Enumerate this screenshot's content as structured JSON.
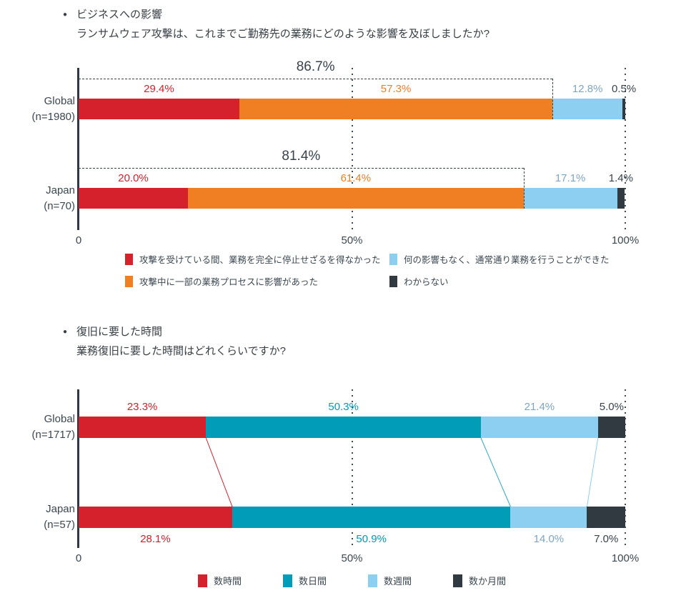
{
  "charts": [
    {
      "title": "ビジネスへの影響",
      "question": "ランサムウェア攻撃は、これまでご勤務先の業務にどのような影響を及ぼしましたか?",
      "chart_data": {
        "type": "bar",
        "stacked": true,
        "orientation": "horizontal",
        "xlim": [
          0,
          100
        ],
        "x_ticks": [
          "0",
          "50%",
          "100%"
        ],
        "grid": "vertical dotted lines at 50% and 100%",
        "legend_position": "bottom",
        "series_colors": [
          "#d4212b",
          "#ef7f22",
          "#8ccff0",
          "#323a41"
        ],
        "label_colors": [
          "#d4212b",
          "#ef7f22",
          "#7fa6c0",
          "#39434c"
        ],
        "legend": [
          {
            "label": "攻撃を受けている間、業務を完全に停止せざるを得なかった",
            "color": "#d4212b"
          },
          {
            "label": "攻撃中に一部の業務プロセスに影響があった",
            "color": "#ef7f22"
          },
          {
            "label": "何の影響もなく、通常通り業務を行うことができた",
            "color": "#8ccff0"
          },
          {
            "label": "わからない",
            "color": "#323a41"
          }
        ],
        "rows": [
          {
            "label": "Global",
            "n": "(n=1980)",
            "values": [
              29.4,
              57.3,
              12.8,
              0.5
            ],
            "value_labels": [
              "29.4%",
              "57.3%",
              "12.8%",
              "0.5%"
            ],
            "bracket_label": "86.7%"
          },
          {
            "label": "Japan",
            "n": "(n=70)",
            "values": [
              20.0,
              61.4,
              17.1,
              1.4
            ],
            "value_labels": [
              "20.0%",
              "61.4%",
              "17.1%",
              "1.4%"
            ],
            "bracket_label": "81.4%"
          }
        ]
      }
    },
    {
      "title": "復旧に要した時間",
      "question": "業務復旧に要した時間はどれくらいですか?",
      "chart_data": {
        "type": "bar",
        "stacked": true,
        "orientation": "horizontal",
        "xlim": [
          0,
          100
        ],
        "x_ticks": [
          "0",
          "50%",
          "100%"
        ],
        "grid": "vertical dotted lines at 50% and 100%",
        "legend_position": "bottom",
        "series_colors": [
          "#d4212b",
          "#009cb8",
          "#8ccff0",
          "#323a41"
        ],
        "label_colors": [
          "#d4212b",
          "#009cb8",
          "#7fa6c0",
          "#39434c"
        ],
        "connector_colors": [
          "#d4212b",
          "#2fa9c6",
          "#8ccff0"
        ],
        "legend": [
          {
            "label": "数時間",
            "color": "#d4212b"
          },
          {
            "label": "数日間",
            "color": "#009cb8"
          },
          {
            "label": "数週間",
            "color": "#8ccff0"
          },
          {
            "label": "数か月間",
            "color": "#323a41"
          }
        ],
        "rows": [
          {
            "label": "Global",
            "n": "(n=1717)",
            "values": [
              23.3,
              50.3,
              21.4,
              5.0
            ],
            "value_labels": [
              "23.3%",
              "50.3%",
              "21.4%",
              "5.0%"
            ],
            "labels_position": "above"
          },
          {
            "label": "Japan",
            "n": "(n=57)",
            "values": [
              28.1,
              50.9,
              14.0,
              7.0
            ],
            "value_labels": [
              "28.1%",
              "50.9%",
              "14.0%",
              "7.0%"
            ],
            "labels_position": "below"
          }
        ]
      }
    }
  ]
}
